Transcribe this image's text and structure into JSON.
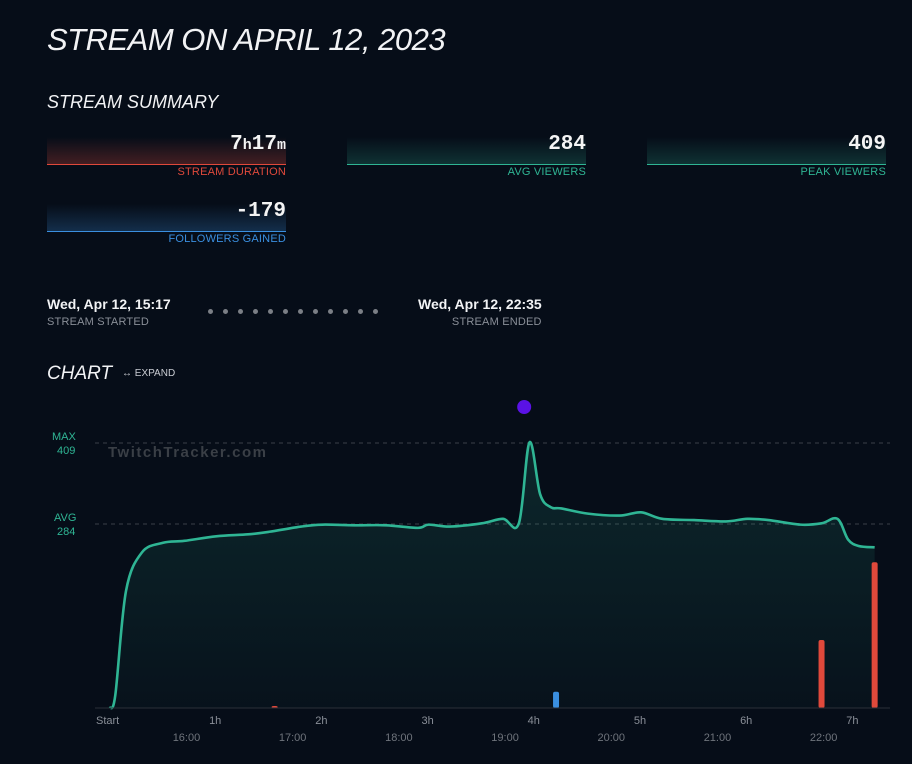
{
  "page": {
    "title": "STREAM ON APRIL 12, 2023",
    "summary_title": "STREAM SUMMARY"
  },
  "stats": {
    "duration": {
      "value": "7h17m",
      "label": "STREAM DURATION",
      "color": "#e0493b"
    },
    "avg_viewers": {
      "value": "284",
      "label": "AVG VIEWERS",
      "color": "#2fb594"
    },
    "peak_viewers": {
      "value": "409",
      "label": "PEAK VIEWERS",
      "color": "#2fb594"
    },
    "followers": {
      "value": "-179",
      "label": "FOLLOWERS GAINED",
      "color": "#3a8fe0"
    }
  },
  "timeline": {
    "start_time": "Wed, Apr 12, 15:17",
    "start_label": "STREAM STARTED",
    "end_time": "Wed, Apr 12, 22:35",
    "end_label": "STREAM ENDED"
  },
  "chart": {
    "title": "CHART",
    "expand_label": "↔ EXPAND",
    "watermark": "TwitchTracker.com",
    "max_label": "MAX",
    "max_value": "409",
    "avg_label": "AVG",
    "avg_value": "284"
  },
  "chart_data": {
    "type": "area",
    "x_ticks_elapsed": [
      "Start",
      "1h",
      "2h",
      "3h",
      "4h",
      "5h",
      "6h",
      "7h"
    ],
    "x_ticks_clock": [
      "16:00",
      "17:00",
      "18:00",
      "19:00",
      "20:00",
      "21:00",
      "22:00"
    ],
    "xlim_hours": [
      0,
      7.3
    ],
    "ylim": [
      0,
      409
    ],
    "reference_lines": [
      {
        "name": "MAX",
        "value": 409
      },
      {
        "name": "AVG",
        "value": 284
      }
    ],
    "series": [
      {
        "color": "#2fb594",
        "x": [
          0.0,
          0.05,
          0.15,
          0.3,
          0.5,
          0.7,
          1.0,
          1.3,
          1.5,
          1.8,
          2.0,
          2.3,
          2.6,
          2.9,
          3.0,
          3.2,
          3.5,
          3.7,
          3.85,
          3.95,
          4.05,
          4.15,
          4.25,
          4.5,
          4.8,
          5.0,
          5.2,
          5.5,
          5.8,
          6.0,
          6.2,
          6.5,
          6.7,
          6.85,
          6.95,
          7.05,
          7.2
        ],
        "values": [
          0,
          20,
          180,
          240,
          255,
          258,
          265,
          268,
          272,
          280,
          283,
          282,
          282,
          278,
          283,
          280,
          285,
          292,
          285,
          410,
          330,
          310,
          308,
          300,
          297,
          302,
          292,
          290,
          288,
          292,
          290,
          283,
          285,
          292,
          260,
          250,
          248
        ]
      },
      {
        "color": "#3a8fe0",
        "type": "bar",
        "x": [
          4.2
        ],
        "values": [
          25
        ]
      },
      {
        "color": "#e0493b",
        "type": "bar",
        "x": [
          1.55,
          6.7,
          7.2
        ],
        "values": [
          3,
          105,
          225
        ]
      }
    ],
    "marker": {
      "x": 3.9,
      "color": "#5a12e6"
    }
  }
}
